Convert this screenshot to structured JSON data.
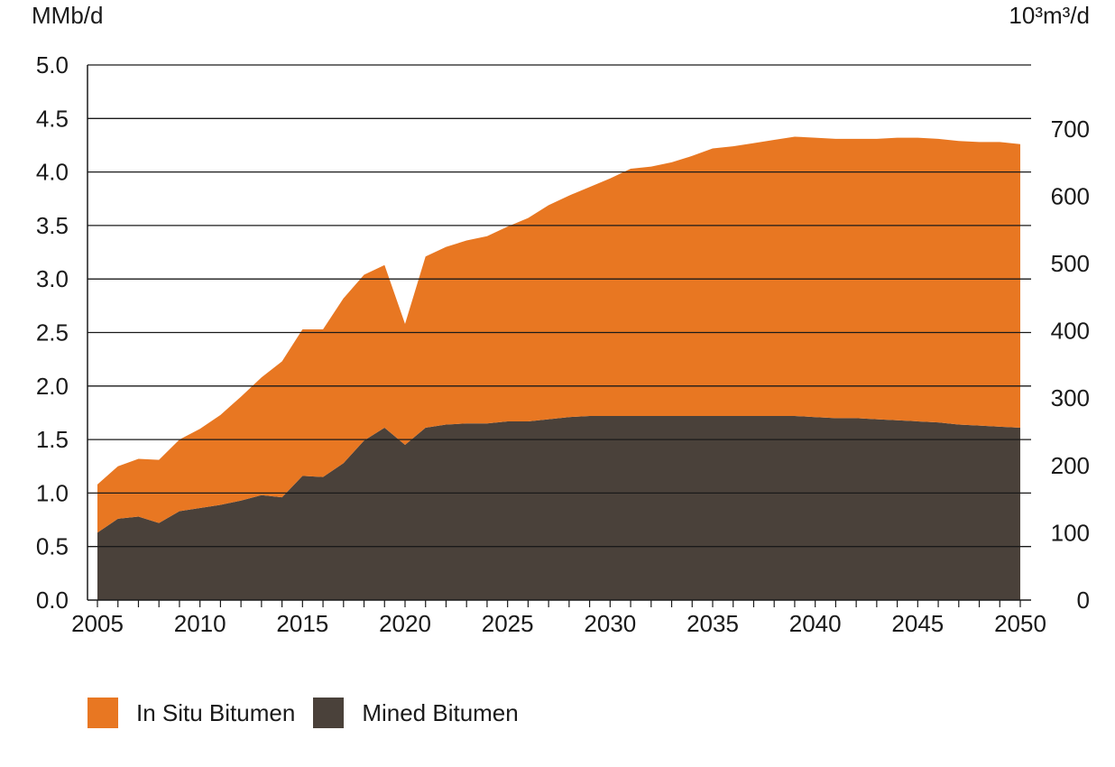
{
  "chart_data": {
    "type": "area",
    "stacked": true,
    "left_axis_unit": "MMb/d",
    "right_axis_unit": "10³m³/d",
    "ylim_left": [
      0,
      5.0
    ],
    "yticks_left": [
      "0.0",
      "0.5",
      "1.0",
      "1.5",
      "2.0",
      "2.5",
      "3.0",
      "3.5",
      "4.0",
      "4.5",
      "5.0"
    ],
    "yticks_right": [
      "0",
      "100",
      "200",
      "300",
      "400",
      "500",
      "600",
      "700"
    ],
    "xlim": [
      2005,
      2050
    ],
    "xticks": [
      "2005",
      "2010",
      "2015",
      "2020",
      "2025",
      "2030",
      "2035",
      "2040",
      "2045",
      "2050"
    ],
    "grid": true,
    "legend_position": "bottom-left",
    "x": [
      2005,
      2006,
      2007,
      2008,
      2009,
      2010,
      2011,
      2012,
      2013,
      2014,
      2015,
      2016,
      2017,
      2018,
      2019,
      2020,
      2021,
      2022,
      2023,
      2024,
      2025,
      2026,
      2027,
      2028,
      2029,
      2030,
      2031,
      2032,
      2033,
      2034,
      2035,
      2036,
      2037,
      2038,
      2039,
      2040,
      2041,
      2042,
      2043,
      2044,
      2045,
      2046,
      2047,
      2048,
      2049,
      2050
    ],
    "series": [
      {
        "name": "Mined Bitumen",
        "color": "#4a413a",
        "values": [
          0.63,
          0.76,
          0.78,
          0.72,
          0.83,
          0.86,
          0.89,
          0.93,
          0.98,
          0.96,
          1.16,
          1.15,
          1.28,
          1.49,
          1.61,
          1.45,
          1.61,
          1.64,
          1.65,
          1.65,
          1.67,
          1.67,
          1.69,
          1.71,
          1.72,
          1.72,
          1.72,
          1.72,
          1.72,
          1.72,
          1.72,
          1.72,
          1.72,
          1.72,
          1.72,
          1.71,
          1.7,
          1.7,
          1.69,
          1.68,
          1.67,
          1.66,
          1.64,
          1.63,
          1.62,
          1.61
        ]
      },
      {
        "name": "In Situ Bitumen",
        "color": "#e87722",
        "values": [
          0.45,
          0.49,
          0.54,
          0.59,
          0.67,
          0.74,
          0.84,
          0.97,
          1.1,
          1.27,
          1.37,
          1.38,
          1.54,
          1.55,
          1.52,
          1.13,
          1.6,
          1.66,
          1.71,
          1.75,
          1.82,
          1.9,
          2.0,
          2.07,
          2.14,
          2.22,
          2.31,
          2.33,
          2.37,
          2.43,
          2.5,
          2.52,
          2.55,
          2.58,
          2.61,
          2.61,
          2.61,
          2.61,
          2.62,
          2.64,
          2.65,
          2.65,
          2.65,
          2.65,
          2.66,
          2.65
        ]
      }
    ]
  },
  "legend": {
    "items": [
      {
        "label": "In Situ Bitumen",
        "color": "#e87722"
      },
      {
        "label": "Mined Bitumen",
        "color": "#4a413a"
      }
    ]
  }
}
